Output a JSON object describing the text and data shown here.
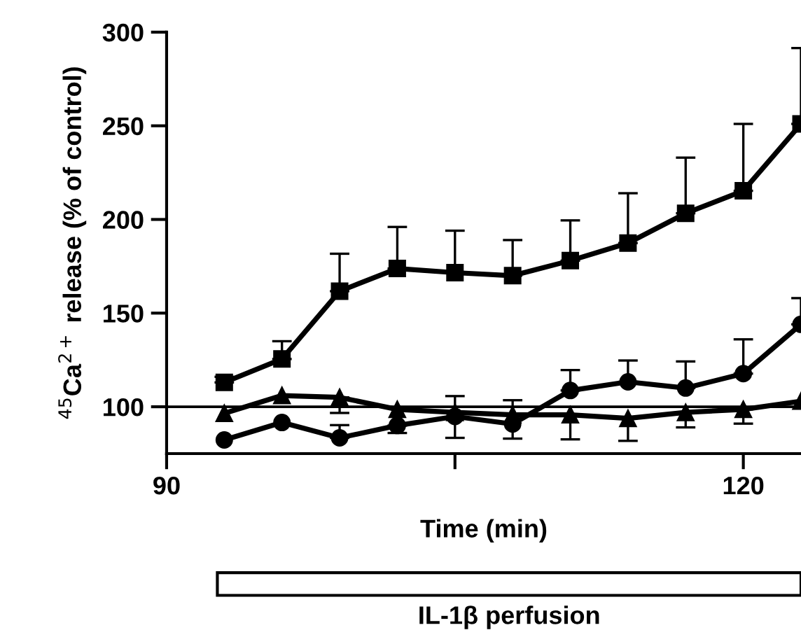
{
  "chart_data": {
    "type": "line",
    "xlabel": "Time (min)",
    "ylabel": "$^{45}$Ca$^{2+}$ release (% of control)",
    "x": [
      93,
      96,
      99,
      102,
      105,
      108,
      111,
      114,
      117,
      120,
      123
    ],
    "xlim": [
      90,
      123
    ],
    "xticks": [
      90,
      {
        "value": 105,
        "label": null
      },
      120
    ],
    "ylim": [
      75,
      300
    ],
    "yticks": [
      100,
      150,
      200,
      250,
      300
    ],
    "grid": false,
    "line_style": "solid",
    "series": [
      {
        "color": "#000000",
        "marker": "square",
        "values": [
          113,
          125.5,
          161.7,
          173.8,
          171.6,
          170,
          178,
          187.4,
          203.3,
          215.3,
          251
        ],
        "errors": [
          [
            113,
            116
          ],
          [
            125.5,
            135
          ],
          [
            161.7,
            181.7
          ],
          [
            173.8,
            196
          ],
          [
            171.6,
            194
          ],
          [
            170,
            189
          ],
          [
            178,
            199.5
          ],
          [
            187.4,
            214
          ],
          [
            203.3,
            233
          ],
          [
            215.3,
            251
          ],
          [
            251,
            291.5
          ]
        ]
      },
      {
        "color": "#000000",
        "marker": "circle",
        "values": [
          82.3,
          91.6,
          83.4,
          90,
          94.8,
          90.8,
          108.7,
          113.3,
          110,
          117.7,
          144
        ],
        "errors": [
          null,
          null,
          [
            83.4,
            90.2
          ],
          [
            86,
            90
          ],
          [
            83.4,
            105.7
          ],
          [
            83,
            103.5
          ],
          [
            108.7,
            119.6
          ],
          [
            113.3,
            124.7
          ],
          [
            110,
            124.2
          ],
          [
            117.7,
            136
          ],
          [
            144,
            158
          ]
        ]
      },
      {
        "color": "#000000",
        "marker": "triangle",
        "values": [
          96.5,
          106,
          105,
          98.6,
          97,
          95.7,
          95.7,
          93.8,
          97,
          98.6,
          103
        ],
        "errors": [
          null,
          null,
          [
            96.7,
            105
          ],
          null,
          null,
          null,
          [
            82.6,
            95.7
          ],
          [
            81.8,
            93.8
          ],
          [
            89,
            97
          ],
          [
            91,
            98.6
          ],
          null
        ]
      }
    ],
    "ref_lines": [
      {
        "axis": "y",
        "value": 100,
        "color": "#000000"
      }
    ],
    "annotations": [
      "IL-1β perfusion"
    ]
  }
}
